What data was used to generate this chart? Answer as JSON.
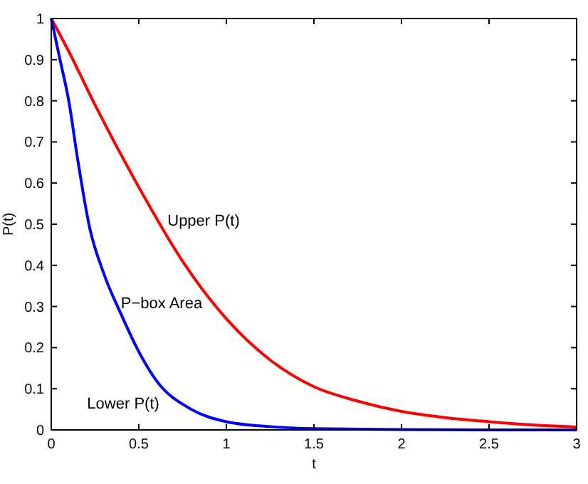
{
  "chart_data": {
    "type": "line",
    "xlabel": "t",
    "ylabel": "P(t)",
    "xlim": [
      0,
      3
    ],
    "ylim": [
      0,
      1
    ],
    "xticks": [
      0,
      0.5,
      1,
      1.5,
      2,
      2.5,
      3
    ],
    "yticks": [
      0,
      0.1,
      0.2,
      0.3,
      0.4,
      0.5,
      0.6,
      0.7,
      0.8,
      0.9,
      1
    ],
    "grid": false,
    "marker": "none",
    "line_style": "solid",
    "series": [
      {
        "color": "#ff0000",
        "x": [
          0,
          0.1,
          0.25,
          0.5,
          0.75,
          1,
          1.25,
          1.5,
          1.75,
          2,
          2.25,
          2.5,
          2.75,
          3
        ],
        "values": [
          1,
          0.92,
          0.79,
          0.59,
          0.41,
          0.27,
          0.17,
          0.105,
          0.07,
          0.045,
          0.03,
          0.02,
          0.012,
          0.007
        ]
      },
      {
        "color": "#0000ff",
        "x": [
          0,
          0.05,
          0.1,
          0.15,
          0.22,
          0.3,
          0.4,
          0.5,
          0.6,
          0.8,
          1,
          1.25,
          1.5,
          2,
          2.5,
          3
        ],
        "values": [
          1,
          0.9,
          0.8,
          0.66,
          0.49,
          0.38,
          0.28,
          0.19,
          0.12,
          0.05,
          0.02,
          0.008,
          0.003,
          0.001,
          0,
          0
        ]
      }
    ],
    "annotations": [
      "Upper P(t)",
      "P−box Area",
      "Lower P(t)"
    ]
  }
}
